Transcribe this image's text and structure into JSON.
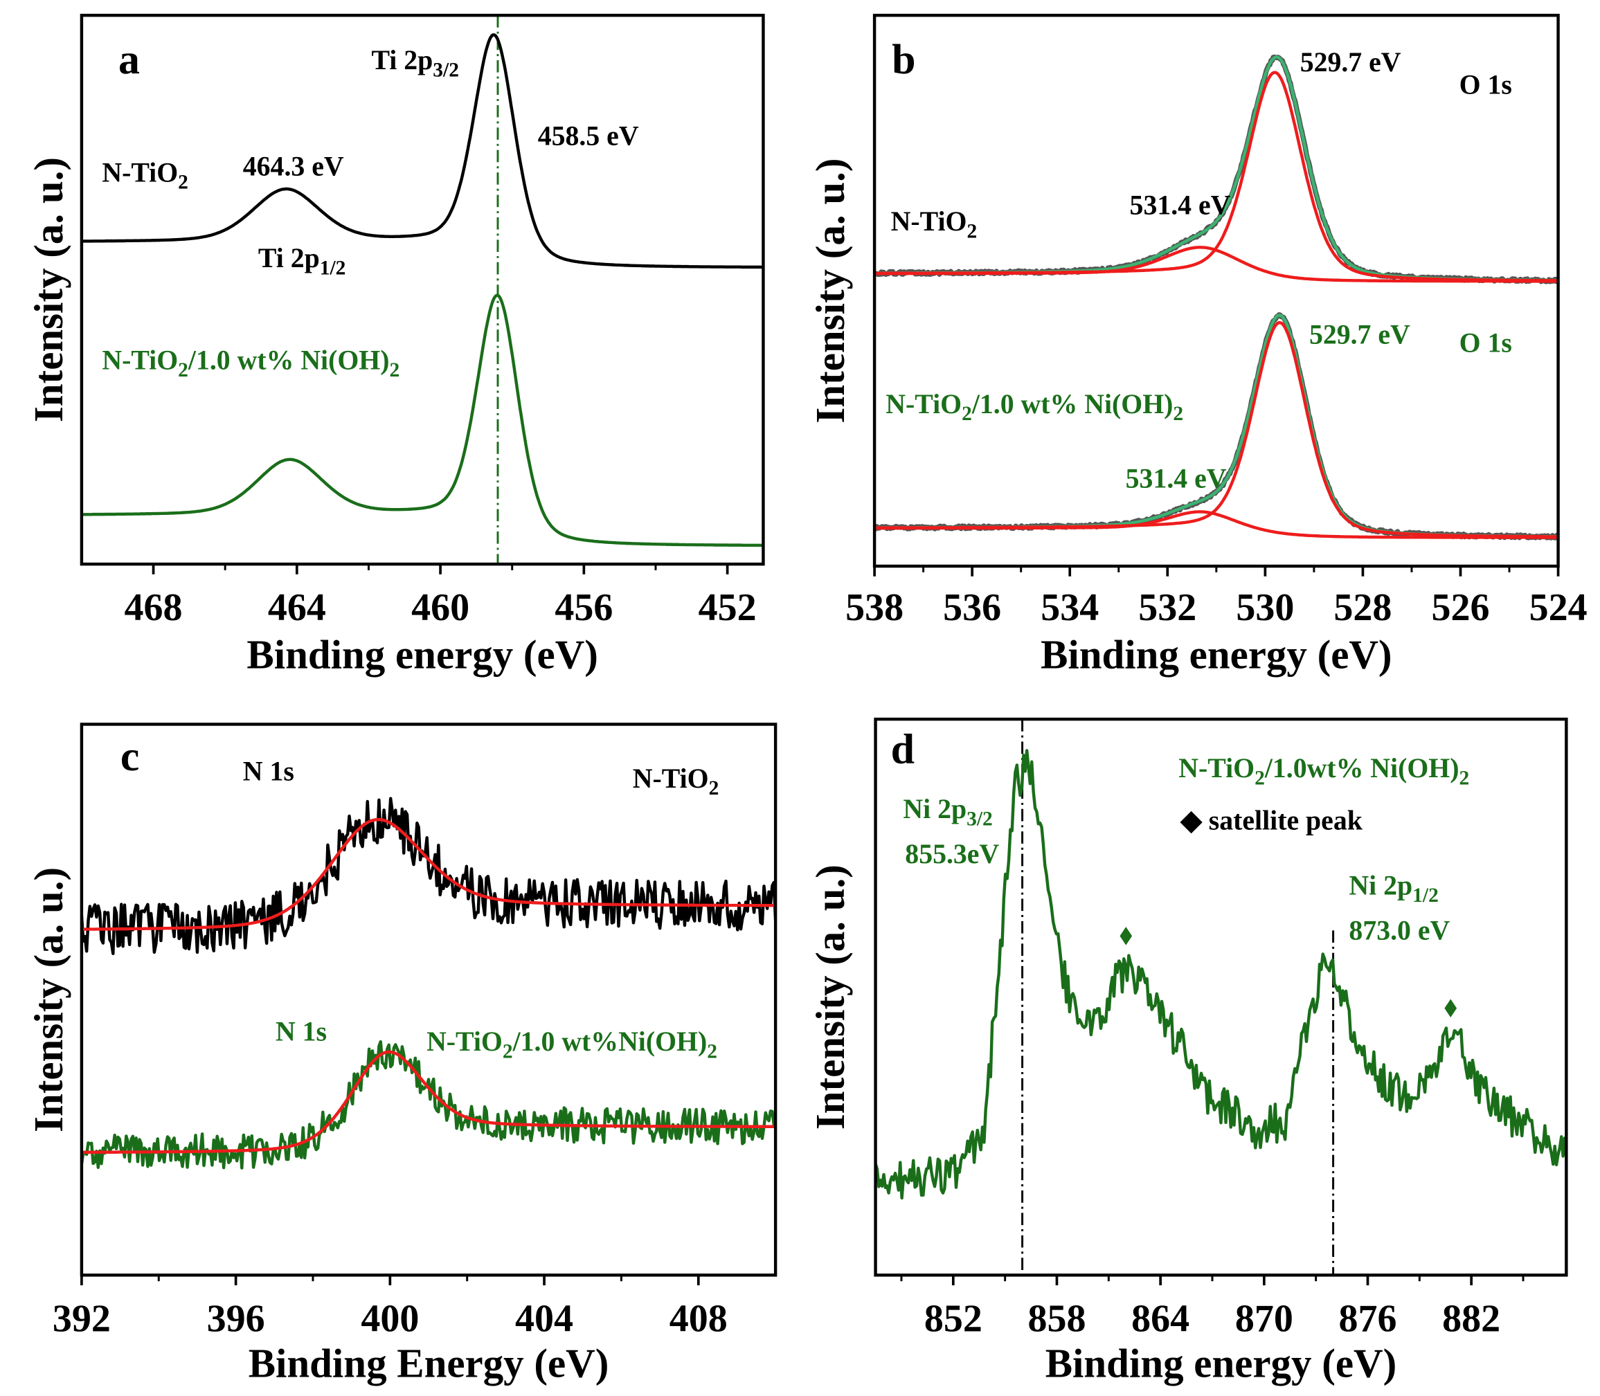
{
  "chart_data": [
    {
      "panel": "a",
      "type": "line",
      "title": "a",
      "xlabel": "Binding energy (eV)",
      "ylabel": "Intensity (a. u.)",
      "xlim": [
        470,
        451
      ],
      "ylim": [
        0,
        100
      ],
      "x_ticks": [
        "468",
        "464",
        "460",
        "456",
        "452"
      ],
      "x_tick_values": [
        468,
        464,
        460,
        456,
        452
      ],
      "x_minor_ticks": [
        466,
        462,
        458,
        454
      ],
      "vlines": [
        {
          "x": 458.4,
          "color": "#1a6e1a"
        }
      ],
      "series": [
        {
          "name": "N-TiO2",
          "color": "#000000",
          "baseline": [
            58.7,
            54
          ],
          "step_center": 458.5,
          "peaks": [
            {
              "center": 458.5,
              "amp": 40,
              "fwhm": 1.35
            },
            {
              "center": 464.3,
              "amp": 9.5,
              "fwhm": 2.2
            }
          ],
          "noise": 0
        },
        {
          "name": "N-TiO2/1.0 wt% Ni(OH)2",
          "color": "#1a6e1a",
          "baseline": [
            8.9,
            3.3
          ],
          "step_center": 458.5,
          "peaks": [
            {
              "center": 458.4,
              "amp": 43,
              "fwhm": 1.35
            },
            {
              "center": 464.2,
              "amp": 10,
              "fwhm": 2.2
            }
          ],
          "noise": 0
        }
      ],
      "annotations": [
        {
          "color": "#000000",
          "segments": [
            {
              "text": "Ti 2p"
            },
            {
              "text": "3/2",
              "sub": true
            }
          ]
        },
        {
          "color": "#000000",
          "segments": [
            {
              "text": "458.5 eV"
            }
          ]
        },
        {
          "color": "#000000",
          "segments": [
            {
              "text": "N-TiO"
            },
            {
              "text": "2",
              "sub": true
            }
          ]
        },
        {
          "color": "#000000",
          "segments": [
            {
              "text": "464.3 eV"
            }
          ]
        },
        {
          "color": "#000000",
          "segments": [
            {
              "text": "Ti 2p"
            },
            {
              "text": "1/2",
              "sub": true
            }
          ]
        },
        {
          "color": "#1a6e1a",
          "segments": [
            {
              "text": "N-TiO"
            },
            {
              "text": "2",
              "sub": true
            },
            {
              "text": "/1.0 wt% Ni(OH)"
            },
            {
              "text": "2",
              "sub": true
            }
          ]
        }
      ]
    },
    {
      "panel": "b",
      "type": "line",
      "title": "b",
      "xlabel": "Binding energy (eV)",
      "ylabel": "Intensity (a. u.)",
      "xlim": [
        538,
        524
      ],
      "ylim": [
        0,
        100
      ],
      "x_ticks": [
        "538",
        "536",
        "534",
        "532",
        "530",
        "528",
        "526",
        "524"
      ],
      "x_tick_values": [
        538,
        536,
        534,
        532,
        530,
        528,
        526,
        524
      ],
      "x_minor_ticks": [
        537,
        535,
        533,
        531,
        529,
        527,
        525
      ],
      "vlines": [],
      "series": [
        {
          "name": "N-TiO2 raw",
          "color": "#555555",
          "baseline": [
            53.1,
            51.7
          ],
          "step_center": 530.3,
          "peaks": [
            {
              "center": 529.75,
              "amp": 39.5,
              "fwhm": 1.35
            },
            {
              "center": 531.3,
              "amp": 5,
              "fwhm": 1.8
            }
          ],
          "noise": 0.25,
          "width": 5
        },
        {
          "name": "N-TiO2 envelope",
          "color": "#3cb371",
          "baseline": [
            53.1,
            51.7
          ],
          "step_center": 530.3,
          "peaks": [
            {
              "center": 529.75,
              "amp": 39.5,
              "fwhm": 1.35
            },
            {
              "center": 531.3,
              "amp": 5,
              "fwhm": 1.8
            }
          ],
          "noise": 0
        },
        {
          "name": "N-TiO2 O 1s 529.7 eV component",
          "color": "#ee1c1c",
          "baseline": [
            53.1,
            51.7
          ],
          "step_center": 530.3,
          "peaks": [
            {
              "center": 529.8,
              "amp": 37.5,
              "fwhm": 1.3
            }
          ],
          "noise": 0
        },
        {
          "name": "N-TiO2 O 1s 531.4 eV component",
          "color": "#ee1c1c",
          "baseline": [
            53.1,
            51.7
          ],
          "step_center": 530.3,
          "peaks": [
            {
              "center": 531.3,
              "amp": 5,
              "fwhm": 1.8
            }
          ],
          "noise": 0
        },
        {
          "name": "N-TiO2/Ni(OH)2 raw",
          "color": "#555555",
          "baseline": [
            6.9,
            5.2
          ],
          "step_center": 530.2,
          "peaks": [
            {
              "center": 529.7,
              "amp": 39.5,
              "fwhm": 1.3
            },
            {
              "center": 531.3,
              "amp": 3.2,
              "fwhm": 1.6
            }
          ],
          "noise": 0.25,
          "width": 5
        },
        {
          "name": "N-TiO2/Ni(OH)2 envelope",
          "color": "#3cb371",
          "baseline": [
            6.9,
            5.2
          ],
          "step_center": 530.2,
          "peaks": [
            {
              "center": 529.7,
              "amp": 39.5,
              "fwhm": 1.3
            },
            {
              "center": 531.3,
              "amp": 3.2,
              "fwhm": 1.6
            }
          ],
          "noise": 0
        },
        {
          "name": "N-TiO2/Ni(OH)2 O 1s 529.7 eV component",
          "color": "#ee1c1c",
          "baseline": [
            6.9,
            5.2
          ],
          "step_center": 530.2,
          "peaks": [
            {
              "center": 529.7,
              "amp": 38.5,
              "fwhm": 1.28
            }
          ],
          "noise": 0
        },
        {
          "name": "N-TiO2/Ni(OH)2 O 1s 531.4 eV component",
          "color": "#ee1c1c",
          "baseline": [
            6.9,
            5.2
          ],
          "step_center": 530.2,
          "peaks": [
            {
              "center": 531.3,
              "amp": 3.2,
              "fwhm": 1.6
            }
          ],
          "noise": 0
        }
      ],
      "annotations": [
        {
          "color": "#000000",
          "segments": [
            {
              "text": "529.7 eV"
            }
          ]
        },
        {
          "color": "#000000",
          "segments": [
            {
              "text": "O 1s"
            }
          ]
        },
        {
          "color": "#000000",
          "segments": [
            {
              "text": "N-TiO"
            },
            {
              "text": "2",
              "sub": true
            }
          ]
        },
        {
          "color": "#000000",
          "segments": [
            {
              "text": "531.4 eV"
            }
          ]
        },
        {
          "color": "#1a6e1a",
          "segments": [
            {
              "text": "529.7 eV"
            }
          ]
        },
        {
          "color": "#1a6e1a",
          "segments": [
            {
              "text": "O 1s"
            }
          ]
        },
        {
          "color": "#1a6e1a",
          "segments": [
            {
              "text": "N-TiO"
            },
            {
              "text": "2",
              "sub": true
            },
            {
              "text": "/1.0 wt% Ni(OH)"
            },
            {
              "text": "2",
              "sub": true
            }
          ]
        },
        {
          "color": "#1a6e1a",
          "segments": [
            {
              "text": "531.4 eV"
            }
          ]
        }
      ]
    },
    {
      "panel": "c",
      "type": "line",
      "title": "c",
      "xlabel": "Binding Energy (eV)",
      "ylabel": "Intensity (a. u.)",
      "xlim": [
        392,
        410
      ],
      "ylim": [
        0,
        100
      ],
      "x_ticks": [
        "392",
        "396",
        "400",
        "404",
        "408"
      ],
      "x_tick_values": [
        392,
        396,
        400,
        404,
        408
      ],
      "x_minor_ticks": [
        394,
        398,
        402,
        406
      ],
      "vlines": [],
      "series": [
        {
          "name": "N-TiO2 data",
          "color": "#000000",
          "baseline": [
            62.6,
            67
          ],
          "step_center": 400.3,
          "peaks": [
            {
              "center": 399.6,
              "amp": 19,
              "fwhm": 2.8
            }
          ],
          "noise": 4.5
        },
        {
          "name": "N-TiO2 fit",
          "color": "#ee1c1c",
          "baseline": [
            62.6,
            67
          ],
          "step_center": 400.3,
          "peaks": [
            {
              "center": 399.6,
              "amp": 19,
              "fwhm": 2.8
            }
          ],
          "noise": 0
        },
        {
          "name": "N-TiO2/1.0 wt%Ni(OH)2 data",
          "color": "#1a6e1a",
          "baseline": [
            22.2,
            26.9
          ],
          "step_center": 400.5,
          "peaks": [
            {
              "center": 399.9,
              "amp": 17,
              "fwhm": 2.2
            }
          ],
          "noise": 3.2
        },
        {
          "name": "N-TiO2/1.0 wt%Ni(OH)2 fit",
          "color": "#ee1c1c",
          "baseline": [
            22.2,
            26.9
          ],
          "step_center": 400.5,
          "peaks": [
            {
              "center": 399.9,
              "amp": 17,
              "fwhm": 2.2
            }
          ],
          "noise": 0
        }
      ],
      "annotations": [
        {
          "color": "#000000",
          "segments": [
            {
              "text": "N 1s"
            }
          ]
        },
        {
          "color": "#000000",
          "segments": [
            {
              "text": "N-TiO"
            },
            {
              "text": "2",
              "sub": true
            }
          ]
        },
        {
          "color": "#1a6e1a",
          "segments": [
            {
              "text": "N 1s"
            }
          ]
        },
        {
          "color": "#1a6e1a",
          "segments": [
            {
              "text": "N-TiO"
            },
            {
              "text": "2",
              "sub": true
            },
            {
              "text": "/1.0 wt%Ni(OH)"
            },
            {
              "text": "2",
              "sub": true
            }
          ]
        }
      ]
    },
    {
      "panel": "d",
      "type": "line",
      "title": "d",
      "xlabel": "Binding energy (eV)",
      "ylabel": "Intensity (a. u.)",
      "xlim": [
        847.5,
        887.5
      ],
      "ylim": [
        0,
        100
      ],
      "x_ticks": [
        "852",
        "858",
        "864",
        "870",
        "876",
        "882"
      ],
      "x_tick_values": [
        852,
        858,
        864,
        870,
        876,
        882
      ],
      "x_minor_ticks": [
        849,
        855,
        861,
        867,
        873,
        879,
        885
      ],
      "vlines": [
        {
          "x": 856.0,
          "color": "#000000"
        },
        {
          "x": 874.0,
          "color": "#000000",
          "from": 62
        }
      ],
      "markers": [
        {
          "x": 862.0,
          "y": 61,
          "symbol": "diamond",
          "color": "#1a6e1a"
        },
        {
          "x": 880.8,
          "y": 48,
          "symbol": "diamond",
          "color": "#1a6e1a"
        }
      ],
      "series": [
        {
          "name": "N-TiO2/1.0wt% Ni(OH)2 Ni 2p",
          "color": "#1a6e1a",
          "points": [
            [
              848,
              17
            ],
            [
              852,
              18
            ],
            [
              853.8,
              25
            ],
            [
              854.6,
              55
            ],
            [
              855.6,
              88
            ],
            [
              856.5,
              92
            ],
            [
              857.3,
              75
            ],
            [
              858.3,
              55
            ],
            [
              859.2,
              45
            ],
            [
              860.5,
              46
            ],
            [
              861.5,
              54
            ],
            [
              862.3,
              55
            ],
            [
              863.6,
              48
            ],
            [
              865.5,
              40
            ],
            [
              866.3,
              33
            ],
            [
              868,
              30
            ],
            [
              869.5,
              26
            ],
            [
              871.3,
              28
            ],
            [
              872.5,
              45
            ],
            [
              873.4,
              55
            ],
            [
              873.9,
              57
            ],
            [
              875,
              45
            ],
            [
              876.5,
              36
            ],
            [
              878,
              32
            ],
            [
              879.5,
              37
            ],
            [
              880.5,
              41
            ],
            [
              881.3,
              42
            ],
            [
              882.5,
              33
            ],
            [
              884.5,
              28
            ],
            [
              887.5,
              21
            ]
          ],
          "noise": 3.5
        }
      ],
      "annotations": [
        {
          "color": "#1a6e1a",
          "segments": [
            {
              "text": "N-TiO"
            },
            {
              "text": "2",
              "sub": true
            },
            {
              "text": "/1.0wt% Ni(OH)"
            },
            {
              "text": "2",
              "sub": true
            }
          ]
        },
        {
          "color": "#000000",
          "segments": [
            {
              "text": "◆ satellite peak"
            }
          ]
        },
        {
          "color": "#1a6e1a",
          "segments": [
            {
              "text": "Ni 2p"
            },
            {
              "text": "3/2",
              "sub": true
            }
          ]
        },
        {
          "color": "#1a6e1a",
          "segments": [
            {
              "text": "855.3eV"
            }
          ]
        },
        {
          "color": "#1a6e1a",
          "segments": [
            {
              "text": "Ni 2p"
            },
            {
              "text": "1/2",
              "sub": true
            }
          ]
        },
        {
          "color": "#1a6e1a",
          "segments": [
            {
              "text": "873.0 eV"
            }
          ]
        }
      ]
    }
  ]
}
